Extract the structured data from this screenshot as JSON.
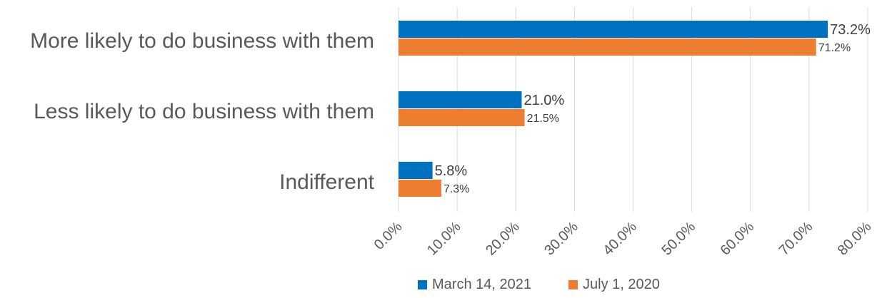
{
  "chart_data": {
    "type": "bar",
    "orientation": "horizontal",
    "title": "",
    "xlabel": "",
    "ylabel": "",
    "categories": [
      "More likely to do business with them",
      "Less likely to do business with them",
      "Indifferent"
    ],
    "series": [
      {
        "name": "March 14, 2021",
        "color": "#0070C0",
        "values": [
          73.2,
          21.0,
          5.8
        ],
        "labels": [
          "73.2%",
          "21.0%",
          "5.8%"
        ]
      },
      {
        "name": "July 1, 2020",
        "color": "#ED7D31",
        "values": [
          71.2,
          21.5,
          7.3
        ],
        "labels": [
          "71.2%",
          "21.5%",
          "7.3%"
        ]
      }
    ],
    "xlim": [
      0,
      80
    ],
    "x_ticks": [
      "0.0%",
      "10.0%",
      "20.0%",
      "30.0%",
      "40.0%",
      "50.0%",
      "60.0%",
      "70.0%",
      "80.0%"
    ],
    "x_tick_rotation": "rotated",
    "grid": true,
    "legend": "bottom"
  }
}
